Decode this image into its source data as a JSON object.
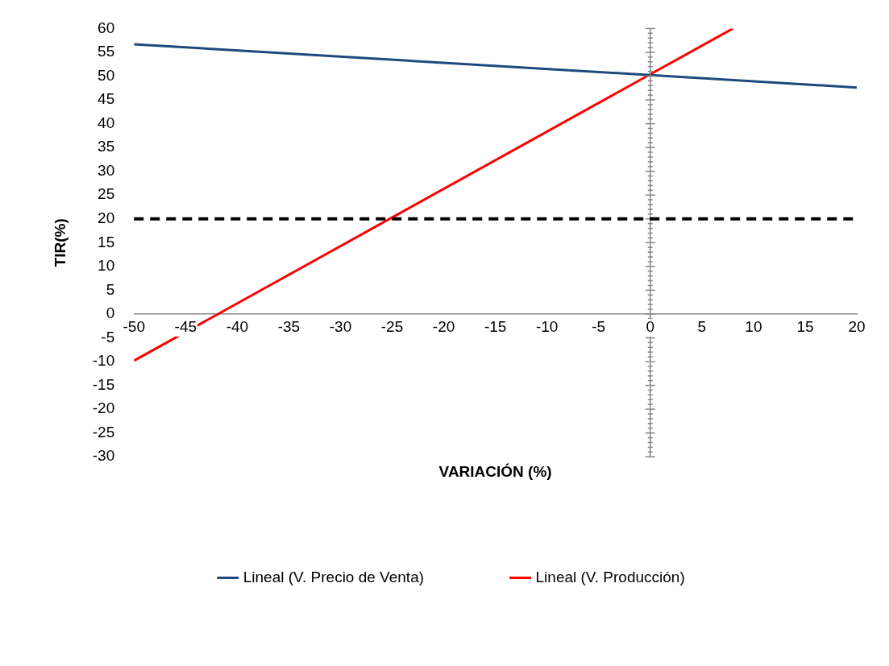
{
  "chart_data": {
    "type": "line",
    "xlabel": "VARIACIÓN (%)",
    "ylabel": "TIR(%)",
    "series": [
      {
        "name": "Lineal (V. Precio de Venta)",
        "color": "#1f497d",
        "x": [
          -50,
          20
        ],
        "values": [
          56.7,
          47.6
        ]
      },
      {
        "name": "Lineal (V. Producción)",
        "color": "#ff0000",
        "x": [
          -50,
          8
        ],
        "values": [
          -9.8,
          60
        ]
      }
    ],
    "ref_lines": [
      {
        "axis": "y",
        "value": 20,
        "color": "#000000",
        "line_style": "dashed"
      }
    ],
    "xlim": [
      -50,
      20
    ],
    "ylim": [
      -30,
      60
    ],
    "xticks": [
      -50,
      -45,
      -40,
      -35,
      -30,
      -25,
      -20,
      -15,
      -10,
      -5,
      0,
      5,
      10,
      15,
      20
    ],
    "yticks": [
      -30,
      -25,
      -20,
      -15,
      -10,
      -5,
      0,
      5,
      10,
      15,
      20,
      25,
      30,
      35,
      40,
      45,
      50,
      55,
      60
    ],
    "grid": false,
    "legend": "bottom",
    "marker": "none",
    "line_style": "solid"
  }
}
